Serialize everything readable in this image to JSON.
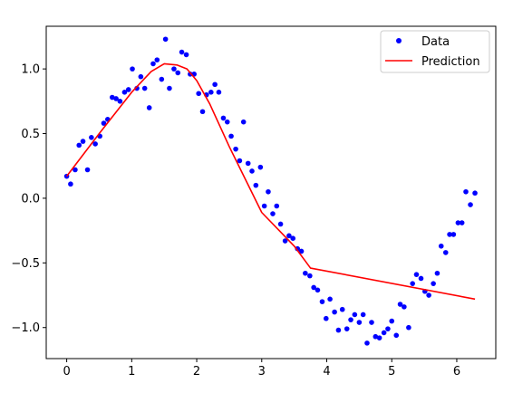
{
  "chart_data": {
    "type": "scatter",
    "xlim": [
      -0.315,
      6.6
    ],
    "ylim": [
      -1.24,
      1.33
    ],
    "xticks": [
      0,
      1,
      2,
      3,
      4,
      5,
      6
    ],
    "yticks": [
      -1.0,
      -0.5,
      0.0,
      0.5,
      1.0
    ],
    "xtick_labels": [
      "0",
      "1",
      "2",
      "3",
      "4",
      "5",
      "6"
    ],
    "ytick_labels": [
      "−1.0",
      "−0.5",
      "0.0",
      "0.5",
      "1.0"
    ],
    "legend_position": "top-right",
    "grid": false,
    "series": [
      {
        "name": "Data",
        "kind": "scatter",
        "color": "#0000ff",
        "x": [
          0.0,
          0.06,
          0.13,
          0.19,
          0.25,
          0.32,
          0.38,
          0.44,
          0.51,
          0.57,
          0.63,
          0.7,
          0.76,
          0.82,
          0.89,
          0.95,
          1.01,
          1.08,
          1.14,
          1.2,
          1.27,
          1.33,
          1.39,
          1.46,
          1.52,
          1.58,
          1.65,
          1.71,
          1.77,
          1.84,
          1.9,
          1.96,
          2.03,
          2.09,
          2.15,
          2.22,
          2.28,
          2.34,
          2.41,
          2.47,
          2.53,
          2.6,
          2.66,
          2.72,
          2.79,
          2.85,
          2.91,
          2.98,
          3.04,
          3.1,
          3.17,
          3.23,
          3.29,
          3.36,
          3.42,
          3.48,
          3.55,
          3.61,
          3.67,
          3.74,
          3.8,
          3.86,
          3.93,
          3.99,
          4.05,
          4.12,
          4.18,
          4.24,
          4.31,
          4.37,
          4.43,
          4.5,
          4.56,
          4.62,
          4.69,
          4.75,
          4.81,
          4.88,
          4.94,
          5.0,
          5.07,
          5.13,
          5.19,
          5.26,
          5.32,
          5.38,
          5.45,
          5.51,
          5.57,
          5.64,
          5.7,
          5.76,
          5.83,
          5.89,
          5.95,
          6.02,
          6.08,
          6.14,
          6.21,
          6.28
        ],
        "y": [
          0.17,
          0.11,
          0.22,
          0.41,
          0.44,
          0.22,
          0.47,
          0.42,
          0.48,
          0.58,
          0.61,
          0.78,
          0.77,
          0.75,
          0.82,
          0.84,
          1.0,
          0.85,
          0.94,
          0.85,
          0.7,
          1.04,
          1.07,
          0.92,
          1.23,
          0.85,
          1.0,
          0.97,
          1.13,
          1.11,
          0.96,
          0.96,
          0.81,
          0.67,
          0.8,
          0.82,
          0.88,
          0.82,
          0.62,
          0.59,
          0.48,
          0.38,
          0.29,
          0.59,
          0.27,
          0.21,
          0.1,
          0.24,
          -0.06,
          0.05,
          -0.12,
          -0.06,
          -0.2,
          -0.33,
          -0.29,
          -0.31,
          -0.39,
          -0.41,
          -0.58,
          -0.6,
          -0.69,
          -0.71,
          -0.8,
          -0.93,
          -0.78,
          -0.88,
          -1.02,
          -0.86,
          -1.01,
          -0.94,
          -0.9,
          -0.96,
          -0.9,
          -1.12,
          -0.96,
          -1.07,
          -1.08,
          -1.04,
          -1.01,
          -0.95,
          -1.06,
          -0.82,
          -0.84,
          -1.0,
          -0.66,
          -0.59,
          -0.62,
          -0.72,
          -0.75,
          -0.66,
          -0.58,
          -0.37,
          -0.42,
          -0.28,
          -0.28,
          -0.19,
          -0.19,
          0.05,
          -0.05,
          0.04
        ]
      },
      {
        "name": "Prediction",
        "kind": "line",
        "color": "#ff0000",
        "x": [
          0.0,
          0.5,
          1.0,
          1.3,
          1.5,
          1.7,
          1.85,
          2.0,
          2.2,
          2.5,
          3.0,
          3.5,
          3.75,
          6.28
        ],
        "y": [
          0.17,
          0.5,
          0.82,
          0.98,
          1.04,
          1.03,
          1.0,
          0.91,
          0.73,
          0.4,
          -0.11,
          -0.37,
          -0.54,
          -0.78
        ]
      }
    ]
  }
}
